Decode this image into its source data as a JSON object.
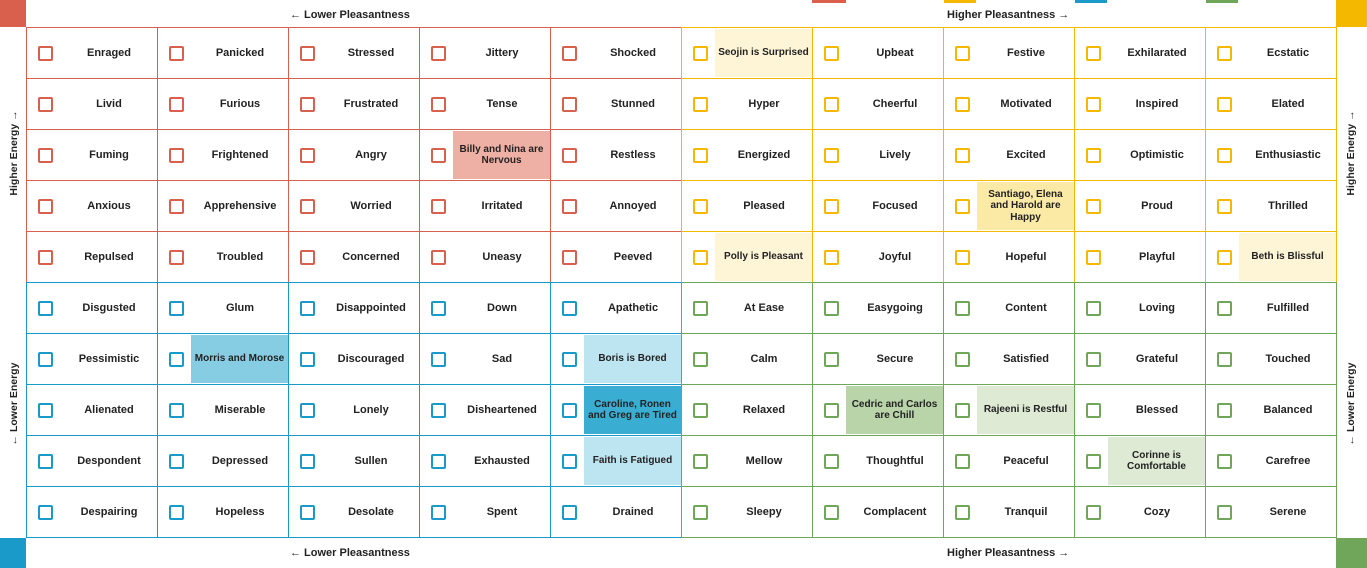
{
  "axis": {
    "top_left": "← Lower Pleasantness",
    "top_right": "Higher Pleasantness →",
    "bottom_left": "← Lower Pleasantness",
    "bottom_right": "Higher Pleasantness →",
    "left_top": "Higher Energy →",
    "left_bottom": "← Lower Energy",
    "right_top": "Higher Energy →",
    "right_bottom": "← Lower Energy"
  },
  "colors": {
    "red": "#d9604c",
    "yellow": "#f5b800",
    "blue": "#1a9ac9",
    "green": "#70a65a",
    "red_hl": "#eeb0a4",
    "yellow_hl": "#fbe9a6",
    "yellow_hl_light": "#fdf5d6",
    "blue_hl": "#bde4f1",
    "blue_hl_dark": "#3aaed2",
    "blue_hl_mid": "#86cde3",
    "green_hl": "#b9d4a9",
    "green_hl_light": "#deead4"
  },
  "rows": [
    [
      "Enraged",
      "Panicked",
      "Stressed",
      "Jittery",
      "Shocked",
      "Seojin is Surprised",
      "Upbeat",
      "Festive",
      "Exhilarated",
      "Ecstatic"
    ],
    [
      "Livid",
      "Furious",
      "Frustrated",
      "Tense",
      "Stunned",
      "Hyper",
      "Cheerful",
      "Motivated",
      "Inspired",
      "Elated"
    ],
    [
      "Fuming",
      "Frightened",
      "Angry",
      "Billy and Nina are Nervous",
      "Restless",
      "Energized",
      "Lively",
      "Excited",
      "Optimistic",
      "Enthusiastic"
    ],
    [
      "Anxious",
      "Apprehensive",
      "Worried",
      "Irritated",
      "Annoyed",
      "Pleased",
      "Focused",
      "Santiago, Elena and Harold are Happy",
      "Proud",
      "Thrilled"
    ],
    [
      "Repulsed",
      "Troubled",
      "Concerned",
      "Uneasy",
      "Peeved",
      "Polly is Pleasant",
      "Joyful",
      "Hopeful",
      "Playful",
      "Beth is Blissful"
    ],
    [
      "Disgusted",
      "Glum",
      "Disappointed",
      "Down",
      "Apathetic",
      "At Ease",
      "Easygoing",
      "Content",
      "Loving",
      "Fulfilled"
    ],
    [
      "Pessimistic",
      "Morris and Morose",
      "Discouraged",
      "Sad",
      "Boris is Bored",
      "Calm",
      "Secure",
      "Satisfied",
      "Grateful",
      "Touched"
    ],
    [
      "Alienated",
      "Miserable",
      "Lonely",
      "Disheartened",
      "Caroline, Ronen and Greg are Tired",
      "Relaxed",
      "Cedric and Carlos are Chill",
      "Rajeeni is Restful",
      "Blessed",
      "Balanced"
    ],
    [
      "Despondent",
      "Depressed",
      "Sullen",
      "Exhausted",
      "Faith is Fatigued",
      "Mellow",
      "Thoughtful",
      "Peaceful",
      "Corinne is Comfortable",
      "Carefree"
    ],
    [
      "Despairing",
      "Hopeless",
      "Desolate",
      "Spent",
      "Drained",
      "Sleepy",
      "Complacent",
      "Tranquil",
      "Cozy",
      "Serene"
    ]
  ],
  "highlights": [
    {
      "row": 0,
      "col": 5,
      "color": "yellow_hl_light"
    },
    {
      "row": 2,
      "col": 3,
      "color": "red_hl"
    },
    {
      "row": 3,
      "col": 7,
      "color": "yellow_hl"
    },
    {
      "row": 4,
      "col": 5,
      "color": "yellow_hl_light"
    },
    {
      "row": 4,
      "col": 9,
      "color": "yellow_hl_light"
    },
    {
      "row": 6,
      "col": 1,
      "color": "blue_hl_mid"
    },
    {
      "row": 6,
      "col": 4,
      "color": "blue_hl"
    },
    {
      "row": 7,
      "col": 4,
      "color": "blue_hl_dark"
    },
    {
      "row": 7,
      "col": 6,
      "color": "green_hl"
    },
    {
      "row": 7,
      "col": 7,
      "color": "green_hl_light"
    },
    {
      "row": 8,
      "col": 4,
      "color": "blue_hl"
    },
    {
      "row": 8,
      "col": 8,
      "color": "green_hl_light"
    }
  ]
}
